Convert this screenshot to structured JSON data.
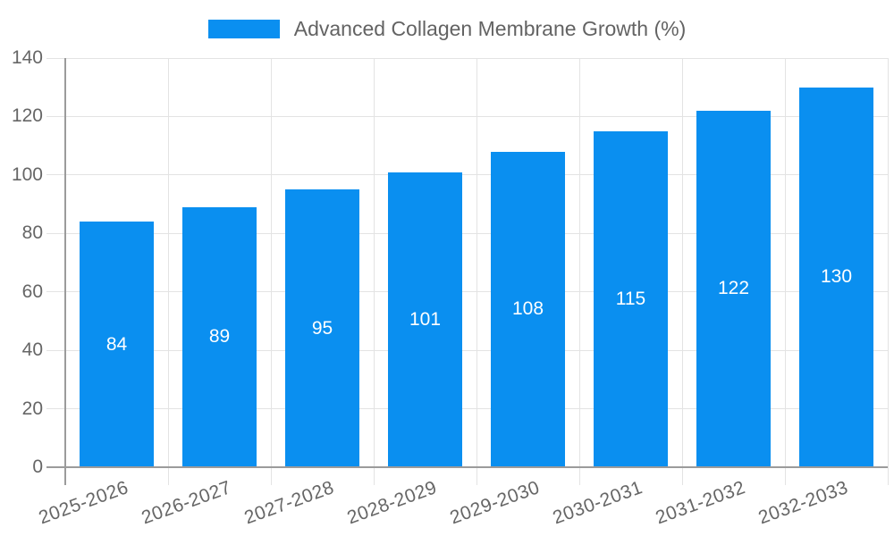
{
  "chart_data": {
    "type": "bar",
    "title": "Advanced Collagen Membrane Growth (%)",
    "categories": [
      "2025-2026",
      "2026-2027",
      "2027-2028",
      "2028-2029",
      "2029-2030",
      "2030-2031",
      "2031-2032",
      "2032-2033"
    ],
    "values": [
      84,
      89,
      95,
      101,
      108,
      115,
      122,
      130
    ],
    "xlabel": "",
    "ylabel": "",
    "ylim": [
      0,
      140
    ],
    "yticks": [
      0,
      20,
      40,
      60,
      80,
      100,
      120,
      140
    ],
    "grid": true,
    "legend_position": "top",
    "bar_labels_inside": true,
    "colors": {
      "bar": "#0a8ff0",
      "bar_label": "#ffffff",
      "axis_text": "#666666",
      "legend_text": "#636363",
      "gridline": "#e3e3e3",
      "axis_line": "#9b9b9b",
      "background": "#ffffff"
    }
  }
}
